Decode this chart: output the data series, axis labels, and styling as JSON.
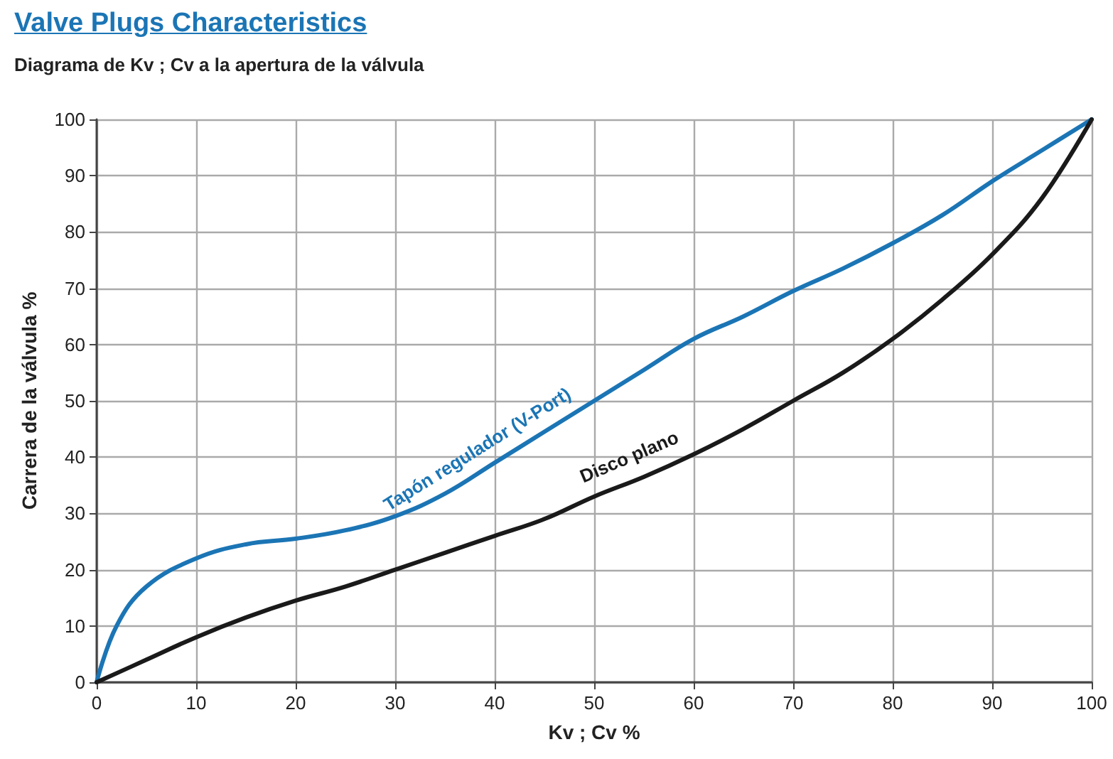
{
  "chart_data": {
    "type": "line",
    "title": "Valve Plugs Characteristics",
    "subtitle": "Diagrama de Kv ; Cv a la apertura de la válvula",
    "xlabel": "Kv ; Cv %",
    "ylabel": "Carrera de la válvula %",
    "xlim": [
      0,
      100
    ],
    "xticks": [
      0,
      10,
      20,
      30,
      40,
      50,
      60,
      70,
      80,
      90,
      100
    ],
    "ylim": [
      0,
      100
    ],
    "yticks": [
      0,
      10,
      20,
      30,
      40,
      50,
      60,
      70,
      80,
      90,
      100
    ],
    "grid": true,
    "legend": false,
    "marker": "none",
    "line_style": "solid",
    "series": [
      {
        "name": "Tapón regulador (V-Port)",
        "color": "#1b75b5",
        "x": [
          0,
          2,
          5,
          10,
          15,
          20,
          25,
          30,
          35,
          40,
          45,
          50,
          55,
          60,
          65,
          70,
          75,
          80,
          85,
          90,
          95,
          100
        ],
        "values": [
          0,
          10,
          17,
          22,
          24.5,
          25.5,
          27,
          29.5,
          33.5,
          39,
          44.5,
          50,
          55.5,
          61,
          65,
          69.5,
          73.5,
          78,
          83,
          89,
          94.5,
          100
        ]
      },
      {
        "name": "Disco plano",
        "color": "#1a1a1a",
        "x": [
          0,
          5,
          10,
          15,
          20,
          25,
          30,
          35,
          40,
          45,
          50,
          55,
          60,
          65,
          70,
          75,
          80,
          85,
          90,
          95,
          100
        ],
        "values": [
          0,
          4,
          8,
          11.5,
          14.5,
          17,
          20,
          23,
          26,
          29,
          33,
          36.5,
          40.5,
          45,
          50,
          55,
          61,
          68,
          76,
          86,
          100
        ]
      }
    ]
  }
}
